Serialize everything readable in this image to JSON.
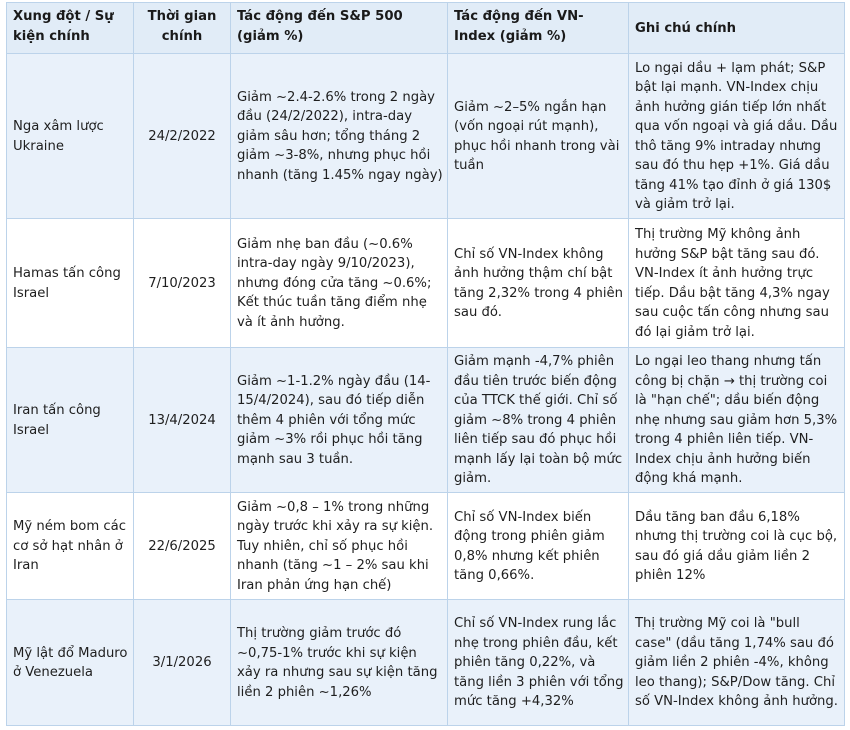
{
  "headers": {
    "event": "Xung đột / Sự kiện chính",
    "time": "Thời gian chính",
    "sp500": "Tác động đến S&P 500 (giảm %)",
    "vnindex": "Tác động đến VN-Index (giảm %)",
    "notes": "Ghi chú chính"
  },
  "rows": [
    {
      "event": "Nga xâm lược Ukraine",
      "date": "24/2/2022",
      "sp500": "Giảm ~2.4-2.6% trong 2 ngày đầu (24/2/2022), intra-day giảm sâu hơn; tổng tháng 2 giảm ~3-8%, nhưng phục hồi nhanh (tăng 1.45% ngay ngày)",
      "vnindex": "Giảm ~2–5% ngắn hạn (vốn ngoại rút mạnh), phục hồi nhanh trong vài tuần",
      "notes": "Lo ngại dầu + lạm phát; S&P bật lại mạnh. VN-Index chịu ảnh hưởng gián tiếp lớn nhất qua vốn ngoại và giá dầu. Dầu thô tăng 9% intraday nhưng sau đó thu hẹp +1%. Giá dầu tăng 41% tạo đỉnh ở giá 130$ và giảm trở lại."
    },
    {
      "event": "Hamas tấn công Israel",
      "date": "7/10/2023",
      "sp500": "Giảm nhẹ ban đầu (~0.6% intra-day ngày 9/10/2023), nhưng đóng cửa tăng ~0.6%; Kết thúc tuần tăng điểm nhẹ và ít ảnh hưởng.",
      "vnindex": "Chỉ số VN-Index không ảnh hưởng thậm chí bật tăng 2,32% trong 4 phiên sau đó.",
      "notes": "Thị trường Mỹ không ảnh hưởng S&P bật tăng sau đó. VN-Index ít ảnh hưởng trực tiếp. Dầu bật tăng 4,3% ngay sau cuộc tấn công nhưng sau đó lại giảm trở lại."
    },
    {
      "event": "Iran tấn công Israel",
      "date": "13/4/2024",
      "sp500": "Giảm ~1-1.2% ngày đầu (14-15/4/2024), sau đó tiếp diễn thêm 4 phiên với tổng mức giảm ~3% rồi phục hồi tăng mạnh sau 3 tuần.",
      "vnindex": "Giảm mạnh -4,7% phiên đầu tiên trước biến động của TTCK thế giới. Chỉ số giảm ~8% trong 4 phiên liên tiếp sau đó phục hồi mạnh lấy lại toàn bộ mức giảm.",
      "notes": "Lo ngại leo thang nhưng tấn công bị chặn → thị trường coi là \"hạn chế\"; dầu biến động nhẹ nhưng sau giảm hơn 5,3% trong 4 phiên liên tiếp. VN-Index chịu ảnh hưởng biến động khá mạnh."
    },
    {
      "event": "Mỹ ném bom các cơ sở hạt nhân ở Iran",
      "date": "22/6/2025",
      "sp500": "Giảm ~0,8 – 1% trong những ngày trước khi xảy ra sự kiện. Tuy nhiên, chỉ số  phục hồi nhanh (tăng ~1 – 2% sau khi Iran phản ứng hạn chế)",
      "vnindex": "Chỉ số VN-Index biến động trong phiên giảm 0,8% nhưng kết phiên tăng 0,66%.",
      "notes": "Dầu tăng ban đầu 6,18% nhưng thị trường coi là cục bộ, sau đó giá dầu giảm liền 2 phiên 12%"
    },
    {
      "event": "Mỹ lật đổ Maduro ở Venezuela",
      "date": "3/1/2026",
      "sp500": "Thị trường giảm trước đó ~0,75-1% trước khi sự kiện xảy ra nhưng sau sự kiện tăng liền 2 phiên ~1,26%",
      "vnindex": "Chỉ số VN-Index rung lắc nhẹ trong phiên đầu, kết phiên tăng 0,22%, và tăng liền 3 phiên với tổng mức tăng +4,32%",
      "notes": "Thị trường Mỹ coi là \"bull case\" (dầu tăng 1,74% sau đó giảm liền 2 phiên -4%, không leo thang); S&P/Dow tăng. Chỉ số VN-Index không ảnh hưởng."
    }
  ]
}
